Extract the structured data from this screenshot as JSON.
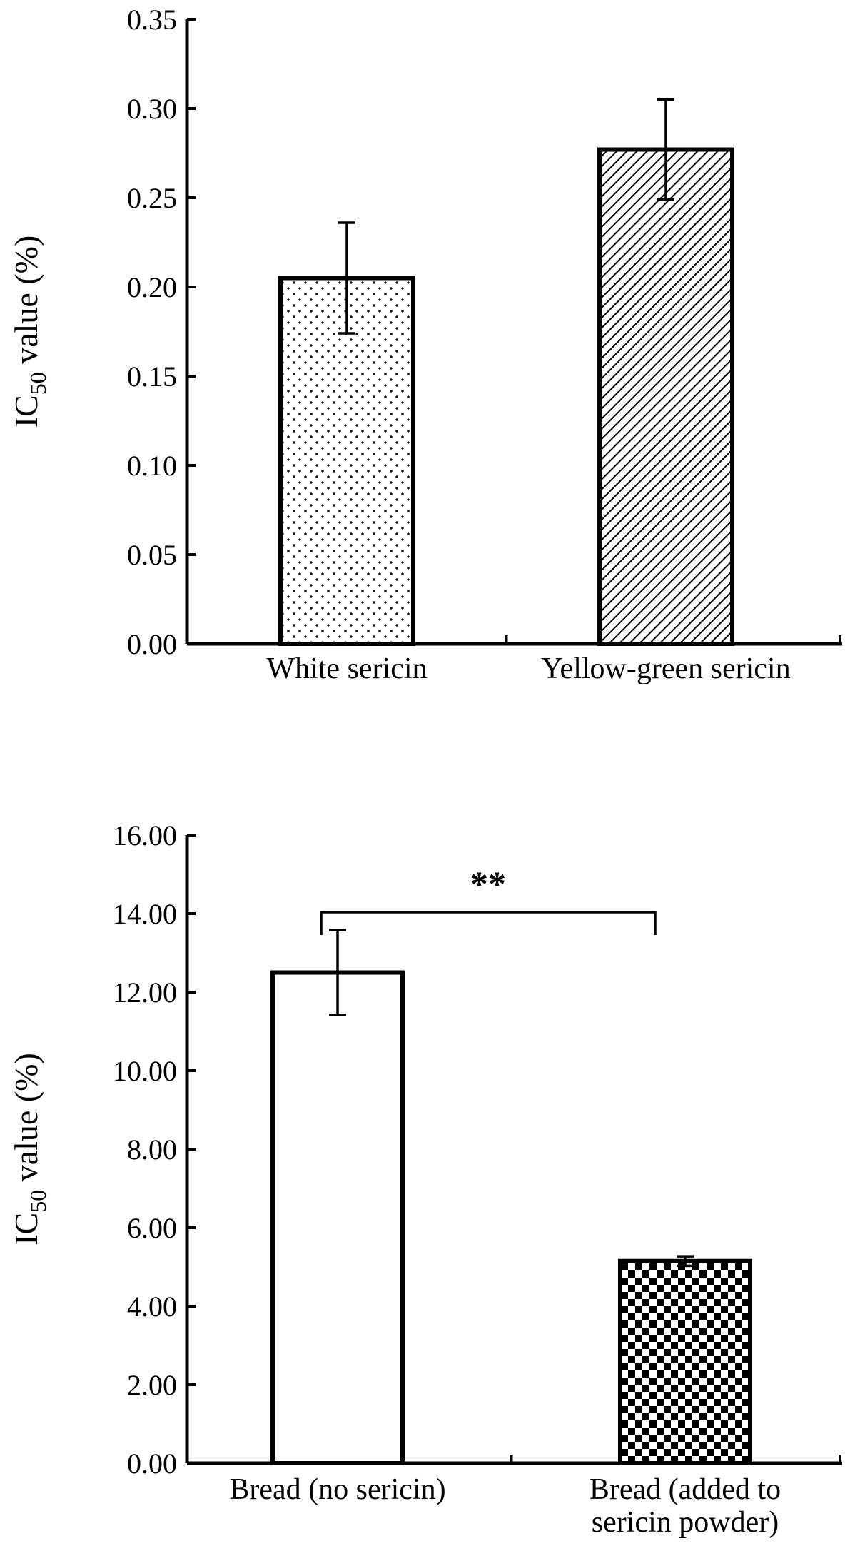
{
  "chart_data": [
    {
      "type": "bar",
      "ylabel": {
        "main": "IC",
        "sub": "50",
        "rest": " value (%)"
      },
      "ylim": [
        0,
        0.35
      ],
      "ytick_labels": [
        "0.00",
        "0.05",
        "0.10",
        "0.15",
        "0.20",
        "0.25",
        "0.30",
        "0.35"
      ],
      "categories": [
        "White sericin",
        "Yellow-green sericin"
      ],
      "category_lines": [
        [
          "White sericin"
        ],
        [
          "Yellow-green sericin"
        ]
      ],
      "values": [
        0.205,
        0.277
      ],
      "errors": [
        0.031,
        0.028
      ],
      "patterns": [
        "dots",
        "hatch"
      ]
    },
    {
      "type": "bar",
      "ylabel": {
        "main": "IC",
        "sub": "50",
        "rest": " value (%)"
      },
      "ylim": [
        0,
        16
      ],
      "ytick_labels": [
        "0.00",
        "2.00",
        "4.00",
        "6.00",
        "8.00",
        "10.00",
        "12.00",
        "14.00",
        "16.00"
      ],
      "categories": [
        "Bread (no sericin)",
        "Bread (added to sericin powder)"
      ],
      "category_lines": [
        [
          "Bread (no sericin)"
        ],
        [
          "Bread  (added to",
          "sericin powder)"
        ]
      ],
      "values": [
        12.5,
        5.15
      ],
      "errors": [
        1.08,
        0.12
      ],
      "patterns": [
        "none",
        "checker"
      ],
      "significance": "**"
    }
  ]
}
